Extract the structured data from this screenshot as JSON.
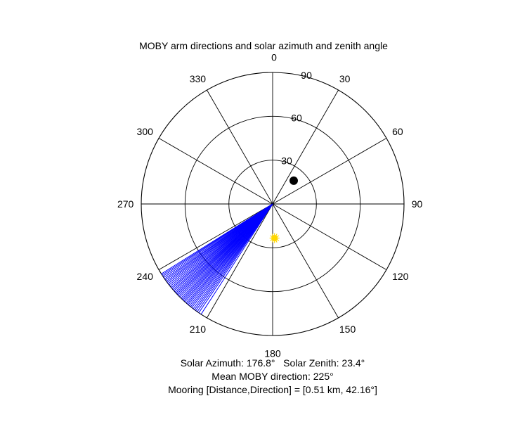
{
  "figure": {
    "title": "MOBY arm directions and solar azimuth and zenith angle",
    "captions": [
      "Solar Azimuth: 176.8°   Solar Zenith: 23.4°",
      "Mean MOBY direction: 225°",
      "Mooring [Distance,Direction] = [0.51 km, 42.16°]"
    ]
  },
  "chart_data": {
    "type": "polar",
    "title": "MOBY arm directions and solar azimuth and zenith angle",
    "angular_axis": {
      "zero_direction": "top",
      "rotation": "clockwise",
      "tick_labels": [
        "0",
        "30",
        "60",
        "90",
        "120",
        "150",
        "180",
        "210",
        "240",
        "270",
        "300",
        "330"
      ]
    },
    "radial_axis": {
      "quantity": "zenith angle",
      "range": [
        0,
        90
      ],
      "tick_values": [
        30,
        60,
        90
      ],
      "tick_labels": [
        "30",
        "60",
        "90"
      ]
    },
    "grid": true,
    "series": [
      {
        "kind": "arm_direction_lines",
        "color": "#0000ff",
        "radius": 90,
        "angles_deg": [
          213.0,
          214.2,
          215.0,
          215.8,
          216.5,
          217.2,
          218.0,
          218.6,
          219.3,
          220.0,
          220.6,
          221.2,
          221.9,
          222.5,
          223.1,
          223.7,
          224.3,
          225.0,
          225.6,
          226.2,
          226.8,
          227.4,
          228.0,
          228.7,
          229.3,
          230.0,
          230.6,
          231.3,
          232.0,
          232.7,
          233.4,
          234.0,
          234.7,
          235.3,
          236.0,
          236.7,
          237.3,
          237.9
        ]
      },
      {
        "kind": "solar_position",
        "marker": "sun",
        "color": "#ffd700",
        "azimuth_deg": 176.8,
        "zenith_deg": 23.4
      },
      {
        "kind": "mooring",
        "marker": "filled_circle",
        "color": "#000000",
        "direction_deg": 42.16,
        "radial_value": 21.5
      }
    ],
    "annotations": {
      "solar_azimuth_deg": 176.8,
      "solar_zenith_deg": 23.4,
      "mean_moby_direction_deg": 225,
      "mooring_distance_km": 0.51,
      "mooring_direction_deg": 42.16
    }
  }
}
